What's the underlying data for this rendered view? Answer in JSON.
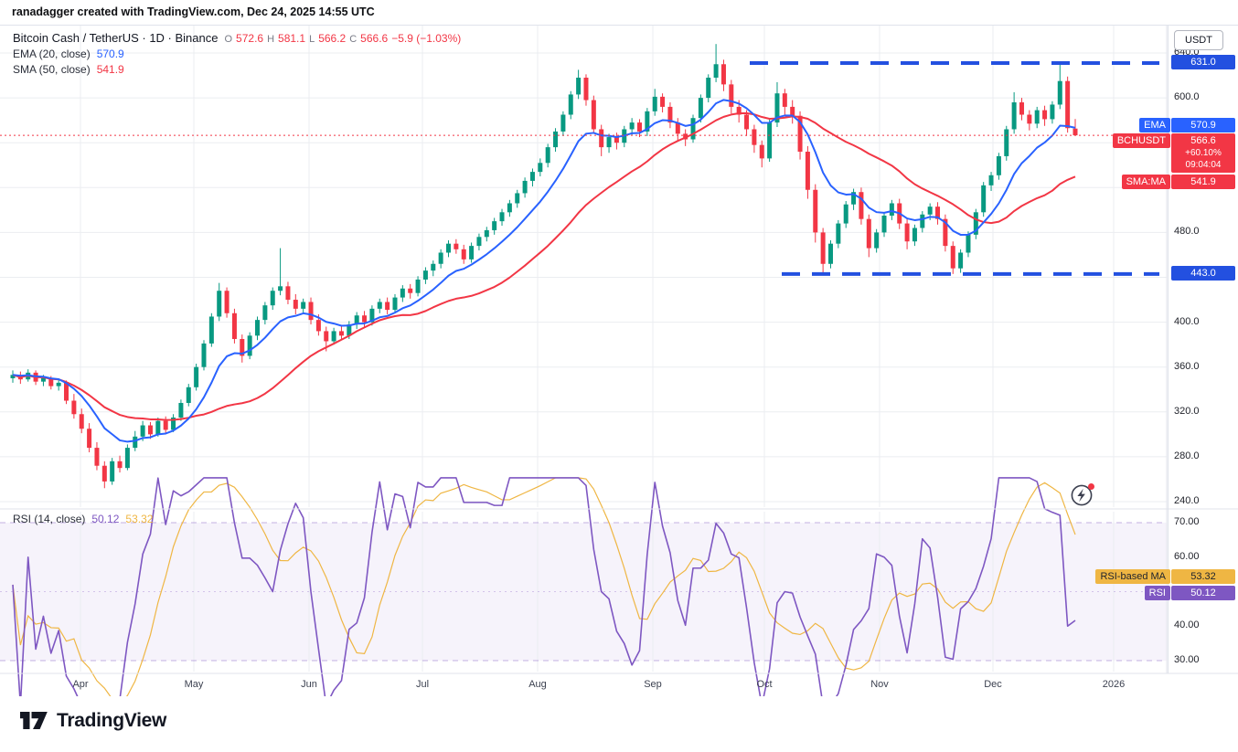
{
  "header": {
    "attribution": "ranadagger created with TradingView.com, Dec 24, 2025 14:55 UTC"
  },
  "main_legend": {
    "title": "Bitcoin Cash / TetherUS · 1D · Binance",
    "open_label": "O",
    "open": "572.6",
    "high_label": "H",
    "high": "581.1",
    "low_label": "L",
    "low": "566.2",
    "close_label": "C",
    "close": "566.6",
    "change": "−5.9 (−1.03%)"
  },
  "ema_legend": {
    "label": "EMA (20, close)",
    "value": "570.9"
  },
  "sma_legend": {
    "label": "SMA (50, close)",
    "value": "541.9"
  },
  "rsi_legend": {
    "label": "RSI (14, close)",
    "rsi_value": "50.12",
    "ma_value": "53.32"
  },
  "price_axis": {
    "unit": "USDT",
    "ticks": [
      640.0,
      600.0,
      520.0,
      480.0,
      400.0,
      360.0,
      320.0,
      280.0,
      240.0
    ],
    "badges": {
      "upper_level": {
        "text": "631.0",
        "price": 631.0
      },
      "ema": {
        "name": "EMA",
        "value": "570.9",
        "price": 570.9
      },
      "symbol": {
        "name": "BCHUSDT",
        "value": "566.6",
        "change_pct": "+60.10%",
        "countdown": "09:04:04",
        "price": 566.6
      },
      "sma": {
        "name": "SMA:MA",
        "value": "541.9",
        "price": 541.9
      },
      "lower_level": {
        "text": "443.0",
        "price": 443.0
      }
    }
  },
  "rsi_axis": {
    "ticks": [
      70.0,
      60.0,
      50.0,
      40.0,
      30.0
    ],
    "badges": {
      "ma": {
        "name": "RSI-based MA",
        "value": "53.32",
        "level": 53.32
      },
      "rsi": {
        "name": "RSI",
        "value": "50.12",
        "level": 50.12
      }
    }
  },
  "time_axis": {
    "labels": [
      "Apr",
      "May",
      "Jun",
      "Jul",
      "Aug",
      "Sep",
      "Oct",
      "Nov",
      "Dec",
      "2026"
    ]
  },
  "footer": {
    "brand": "TradingView"
  },
  "colors": {
    "up": "#089981",
    "down": "#f23645",
    "ema": "#2962ff",
    "sma": "#f23645",
    "level": "#2350e0",
    "rsi": "#7e57c2",
    "rsi_ma": "#efb643",
    "grid": "#ebedf1",
    "text": "#131722",
    "muted": "#787b86"
  },
  "chart_data": {
    "type": "candlestick",
    "title": "Bitcoin Cash / TetherUS · 1D · Binance",
    "symbol": "BCHUSDT",
    "timeframe": "1D",
    "exchange": "Binance",
    "ylabel": "USDT",
    "ylim": [
      240,
      665
    ],
    "rsi_ylim": [
      30,
      70
    ],
    "legend_position": "top-left",
    "grid": true,
    "levels": {
      "resistance": 631.0,
      "support": 443.0,
      "last_price": 566.6
    },
    "last_bar": {
      "o": 572.6,
      "h": 581.1,
      "l": 566.2,
      "c": 566.6,
      "change": -5.9,
      "change_pct": -1.03
    },
    "overlays": [
      {
        "name": "EMA 20",
        "last": 570.9,
        "color": "#2962ff"
      },
      {
        "name": "SMA 50",
        "last": 541.9,
        "color": "#f23645"
      }
    ],
    "rsi": {
      "name": "RSI 14",
      "last": 50.12,
      "ma_last": 53.32,
      "band": [
        30,
        70
      ]
    },
    "x_months": [
      "Apr",
      "May",
      "Jun",
      "Jul",
      "Aug",
      "Sep",
      "Oct",
      "Nov",
      "Dec",
      "2026"
    ],
    "sampling": "approx. 2-day bars, mid-Mar 2025 to Dec 24 2025",
    "candles": [
      [
        350,
        357,
        346,
        353
      ],
      [
        353,
        356,
        345,
        349
      ],
      [
        349,
        358,
        347,
        355
      ],
      [
        355,
        357,
        344,
        347
      ],
      [
        347,
        353,
        343,
        350
      ],
      [
        350,
        352,
        340,
        343
      ],
      [
        343,
        349,
        339,
        346
      ],
      [
        346,
        348,
        327,
        330
      ],
      [
        330,
        336,
        314,
        318
      ],
      [
        318,
        323,
        301,
        305
      ],
      [
        305,
        310,
        284,
        288
      ],
      [
        288,
        293,
        268,
        272
      ],
      [
        272,
        276,
        252,
        258
      ],
      [
        258,
        279,
        255,
        276
      ],
      [
        276,
        281,
        266,
        270
      ],
      [
        270,
        291,
        268,
        288
      ],
      [
        288,
        303,
        285,
        298
      ],
      [
        298,
        312,
        294,
        308
      ],
      [
        308,
        311,
        296,
        300
      ],
      [
        300,
        315,
        298,
        312
      ],
      [
        312,
        316,
        300,
        304
      ],
      [
        304,
        318,
        302,
        315
      ],
      [
        315,
        331,
        312,
        328
      ],
      [
        328,
        345,
        325,
        342
      ],
      [
        342,
        363,
        339,
        360
      ],
      [
        360,
        384,
        357,
        381
      ],
      [
        381,
        408,
        378,
        405
      ],
      [
        405,
        435,
        401,
        428
      ],
      [
        428,
        431,
        404,
        408
      ],
      [
        408,
        412,
        381,
        385
      ],
      [
        385,
        389,
        364,
        370
      ],
      [
        370,
        391,
        367,
        388
      ],
      [
        388,
        405,
        384,
        402
      ],
      [
        402,
        418,
        398,
        415
      ],
      [
        415,
        431,
        411,
        428
      ],
      [
        428,
        466,
        424,
        432
      ],
      [
        432,
        436,
        416,
        420
      ],
      [
        420,
        425,
        407,
        412
      ],
      [
        412,
        421,
        408,
        418
      ],
      [
        418,
        422,
        398,
        402
      ],
      [
        402,
        407,
        388,
        392
      ],
      [
        392,
        396,
        374,
        383
      ],
      [
        383,
        395,
        380,
        392
      ],
      [
        392,
        396,
        384,
        388
      ],
      [
        388,
        401,
        385,
        398
      ],
      [
        398,
        409,
        394,
        406
      ],
      [
        406,
        410,
        396,
        400
      ],
      [
        400,
        415,
        397,
        412
      ],
      [
        412,
        421,
        408,
        418
      ],
      [
        418,
        422,
        407,
        411
      ],
      [
        411,
        425,
        408,
        422
      ],
      [
        422,
        433,
        418,
        430
      ],
      [
        430,
        434,
        421,
        426
      ],
      [
        426,
        441,
        423,
        438
      ],
      [
        438,
        449,
        434,
        446
      ],
      [
        446,
        455,
        441,
        452
      ],
      [
        452,
        465,
        448,
        462
      ],
      [
        462,
        473,
        458,
        470
      ],
      [
        470,
        474,
        461,
        465
      ],
      [
        465,
        469,
        452,
        456
      ],
      [
        456,
        471,
        453,
        468
      ],
      [
        468,
        479,
        464,
        476
      ],
      [
        476,
        485,
        472,
        482
      ],
      [
        482,
        493,
        478,
        490
      ],
      [
        490,
        501,
        486,
        498
      ],
      [
        498,
        509,
        494,
        506
      ],
      [
        506,
        518,
        502,
        515
      ],
      [
        515,
        529,
        511,
        526
      ],
      [
        526,
        537,
        521,
        534
      ],
      [
        534,
        546,
        530,
        542
      ],
      [
        542,
        559,
        538,
        556
      ],
      [
        556,
        573,
        552,
        570
      ],
      [
        570,
        588,
        566,
        585
      ],
      [
        585,
        606,
        581,
        603
      ],
      [
        603,
        625,
        599,
        618
      ],
      [
        618,
        621,
        593,
        598
      ],
      [
        598,
        602,
        568,
        572
      ],
      [
        572,
        576,
        548,
        556
      ],
      [
        556,
        568,
        551,
        565
      ],
      [
        565,
        569,
        554,
        560
      ],
      [
        560,
        575,
        556,
        572
      ],
      [
        572,
        582,
        567,
        578
      ],
      [
        578,
        581,
        565,
        570
      ],
      [
        570,
        591,
        566,
        588
      ],
      [
        588,
        608,
        584,
        601
      ],
      [
        601,
        604,
        587,
        592
      ],
      [
        592,
        596,
        573,
        578
      ],
      [
        578,
        582,
        562,
        568
      ],
      [
        568,
        572,
        557,
        563
      ],
      [
        563,
        585,
        560,
        582
      ],
      [
        582,
        603,
        578,
        600
      ],
      [
        600,
        621,
        596,
        618
      ],
      [
        618,
        648,
        614,
        630
      ],
      [
        630,
        634,
        606,
        612
      ],
      [
        612,
        616,
        586,
        592
      ],
      [
        592,
        598,
        578,
        585
      ],
      [
        585,
        589,
        566,
        572
      ],
      [
        572,
        576,
        551,
        558
      ],
      [
        558,
        562,
        538,
        546
      ],
      [
        546,
        581,
        543,
        578
      ],
      [
        578,
        614,
        574,
        604
      ],
      [
        604,
        608,
        585,
        592
      ],
      [
        592,
        598,
        577,
        584
      ],
      [
        584,
        588,
        545,
        552
      ],
      [
        552,
        557,
        510,
        518
      ],
      [
        518,
        523,
        471,
        480
      ],
      [
        480,
        484,
        443,
        452
      ],
      [
        452,
        473,
        448,
        470
      ],
      [
        470,
        491,
        466,
        488
      ],
      [
        488,
        508,
        484,
        505
      ],
      [
        505,
        519,
        500,
        516
      ],
      [
        516,
        520,
        487,
        492
      ],
      [
        492,
        496,
        458,
        466
      ],
      [
        466,
        483,
        462,
        480
      ],
      [
        480,
        498,
        476,
        495
      ],
      [
        495,
        509,
        491,
        506
      ],
      [
        506,
        510,
        483,
        488
      ],
      [
        488,
        492,
        465,
        472
      ],
      [
        472,
        487,
        468,
        484
      ],
      [
        484,
        499,
        480,
        496
      ],
      [
        496,
        506,
        491,
        503
      ],
      [
        503,
        507,
        487,
        492
      ],
      [
        492,
        496,
        463,
        468
      ],
      [
        468,
        472,
        443,
        448
      ],
      [
        448,
        465,
        444,
        462
      ],
      [
        462,
        481,
        458,
        478
      ],
      [
        478,
        501,
        474,
        498
      ],
      [
        498,
        525,
        494,
        522
      ],
      [
        522,
        534,
        517,
        531
      ],
      [
        531,
        551,
        527,
        548
      ],
      [
        548,
        575,
        544,
        572
      ],
      [
        572,
        605,
        568,
        596
      ],
      [
        596,
        600,
        580,
        585
      ],
      [
        585,
        589,
        571,
        577
      ],
      [
        577,
        592,
        573,
        589
      ],
      [
        589,
        593,
        575,
        581
      ],
      [
        581,
        597,
        577,
        594
      ],
      [
        594,
        631,
        590,
        615
      ],
      [
        615,
        619,
        569,
        573
      ],
      [
        572.6,
        581.1,
        566.2,
        566.6
      ]
    ]
  }
}
